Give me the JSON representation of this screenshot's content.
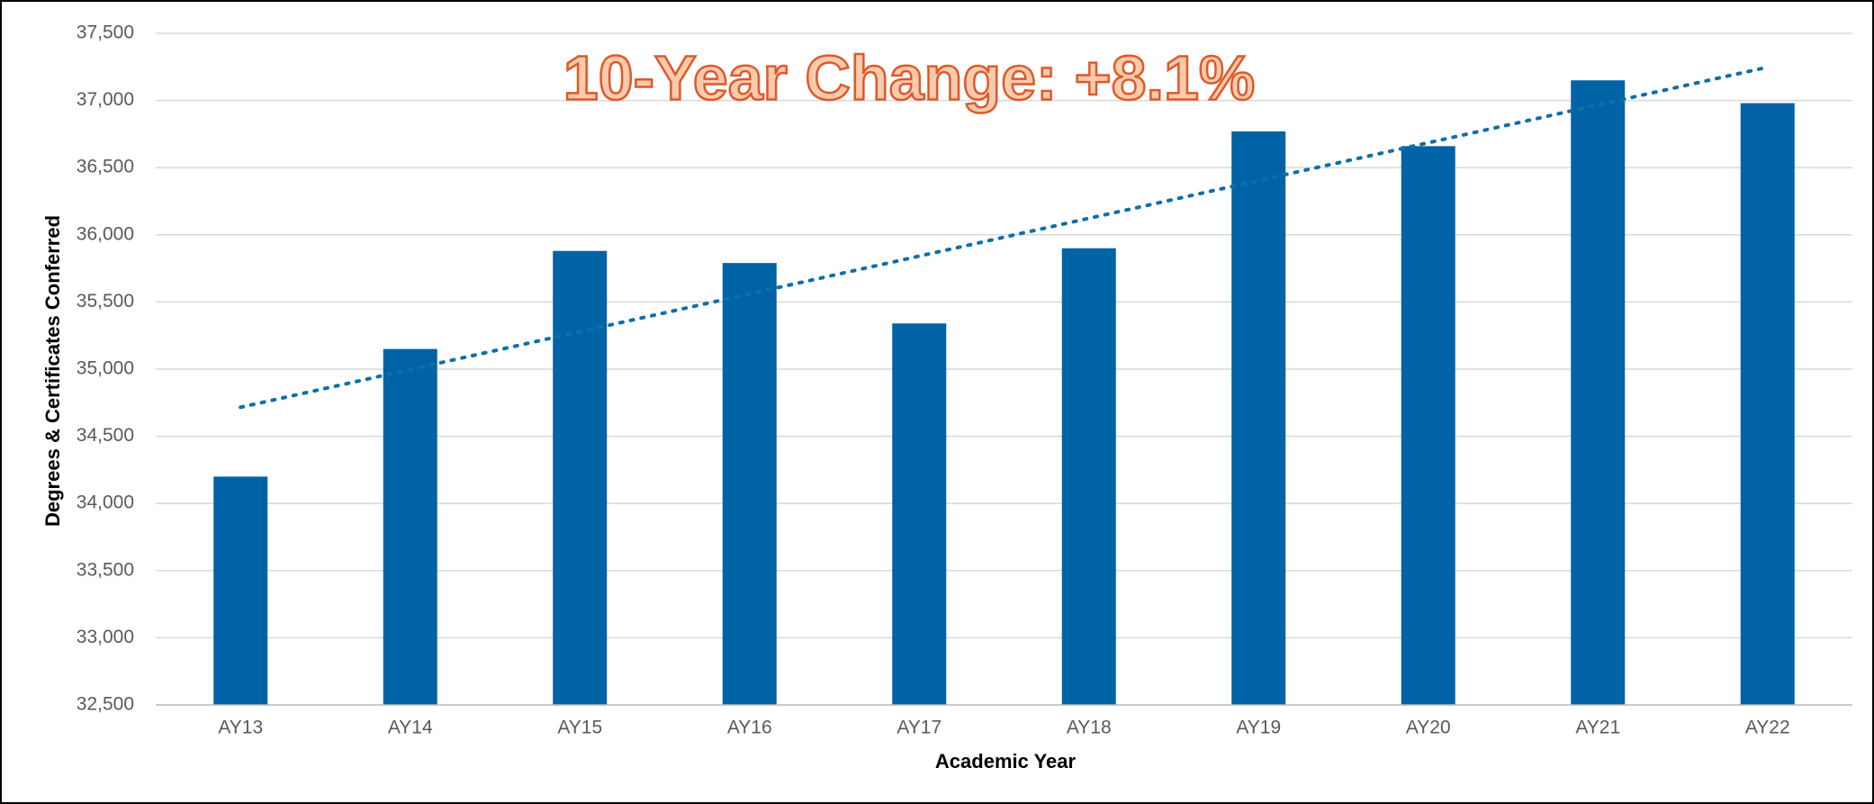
{
  "chart_data": {
    "type": "bar",
    "annotation": "10-Year Change: +8.1%",
    "x_label": "Academic Year",
    "y_label": "Degrees & Certificates Conferred",
    "categories": [
      "AY13",
      "AY14",
      "AY15",
      "AY16",
      "AY17",
      "AY18",
      "AY19",
      "AY20",
      "AY21",
      "AY22"
    ],
    "values": [
      34200,
      35150,
      35880,
      35790,
      35340,
      35900,
      36770,
      36660,
      37150,
      36980
    ],
    "color": "#0063a6",
    "trendline": true,
    "trendline_color": "#0e6fa8",
    "ylim": [
      32500,
      37500
    ],
    "yticks": [
      {
        "value": 32500,
        "label": "32,500"
      },
      {
        "value": 33000,
        "label": "33,000"
      },
      {
        "value": 33500,
        "label": "33,500"
      },
      {
        "value": 34000,
        "label": "34,000"
      },
      {
        "value": 34500,
        "label": "34,500"
      },
      {
        "value": 35000,
        "label": "35,000"
      },
      {
        "value": 35500,
        "label": "35,500"
      },
      {
        "value": 36000,
        "label": "36,000"
      },
      {
        "value": 36500,
        "label": "36,500"
      },
      {
        "value": 37000,
        "label": "37,000"
      },
      {
        "value": 37500,
        "label": "37,500"
      }
    ],
    "grid": true
  }
}
